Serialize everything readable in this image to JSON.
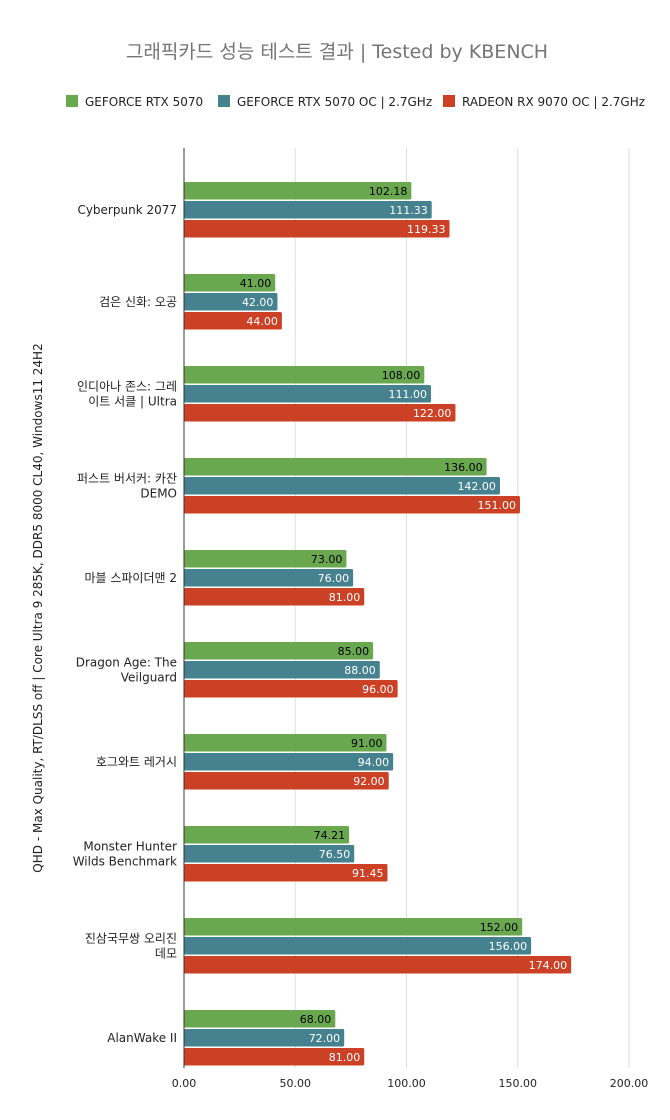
{
  "chart_data": {
    "type": "bar",
    "orientation": "horizontal",
    "title": "그래픽카드 성능 테스트 결과 | Tested by KBENCH",
    "ylabel": "QHD - Max Quality, RT/DLSS off | Core Ultra 9 285K, DDR5 8000 CL40, Windows11 24H2",
    "xlabel": "",
    "xlim": [
      0,
      200
    ],
    "xticks": [
      0,
      50,
      100,
      150,
      200
    ],
    "xtick_labels": [
      "0.00",
      "50.00",
      "100.00",
      "150.00",
      "200.00"
    ],
    "grid": true,
    "legend_position": "top",
    "categories": [
      [
        "Cyberpunk 2077"
      ],
      [
        "검은 신화: 오공"
      ],
      [
        "인디아나 존스: 그레",
        "이트 서클 | Ultra"
      ],
      [
        "퍼스트 버서커: 카잔",
        "DEMO"
      ],
      [
        "마블 스파이더맨 2"
      ],
      [
        "Dragon Age: The",
        "Veilguard"
      ],
      [
        "호그와트 레거시"
      ],
      [
        "Monster Hunter",
        "Wilds Benchmark"
      ],
      [
        "진삼국무쌍 오리진",
        "데모"
      ],
      [
        "AlanWake II"
      ]
    ],
    "series": [
      {
        "name": "GEFORCE RTX 5070",
        "color": "#6aa84f",
        "label_color": "#000000",
        "values": [
          102.18,
          41.0,
          108.0,
          136.0,
          73.0,
          85.0,
          91.0,
          74.21,
          152.0,
          68.0
        ],
        "labels": [
          "102.18",
          "41.00",
          "108.00",
          "136.00",
          "73.00",
          "85.00",
          "91.00",
          "74.21",
          "152.00",
          "68.00"
        ]
      },
      {
        "name": "GEFORCE RTX 5070 OC | 2.7GHz",
        "color": "#45818e",
        "label_color": "#ffffff",
        "values": [
          111.33,
          42.0,
          111.0,
          142.0,
          76.0,
          88.0,
          94.0,
          76.5,
          156.0,
          72.0
        ],
        "labels": [
          "111.33",
          "42.00",
          "111.00",
          "142.00",
          "76.00",
          "88.00",
          "94.00",
          "76.50",
          "156.00",
          "72.00"
        ]
      },
      {
        "name": "RADEON RX 9070 OC | 2.7GHz",
        "color": "#cc4125",
        "label_color": "#ffffff",
        "values": [
          119.33,
          44.0,
          122.0,
          151.0,
          81.0,
          96.0,
          92.0,
          91.45,
          174.0,
          81.0
        ],
        "labels": [
          "119.33",
          "44.00",
          "122.00",
          "151.00",
          "81.00",
          "96.00",
          "92.00",
          "91.45",
          "174.00",
          "81.00"
        ]
      }
    ]
  }
}
